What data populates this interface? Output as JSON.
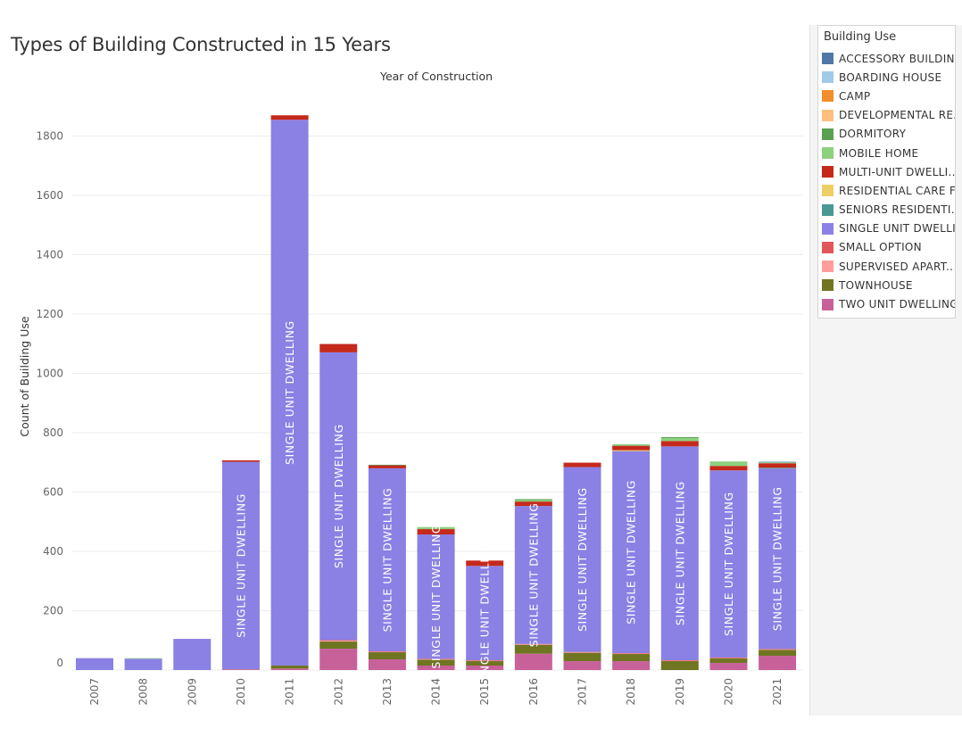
{
  "title": "Types of Building Constructed in 15 Years",
  "legend": {
    "title": "Building Use",
    "items": [
      {
        "label": "ACCESSORY BUILDIN..",
        "color": "#4e79a7"
      },
      {
        "label": "BOARDING HOUSE",
        "color": "#a0cbe8"
      },
      {
        "label": "CAMP",
        "color": "#f28e2b"
      },
      {
        "label": "DEVELOPMENTAL RE..",
        "color": "#ffbe7d"
      },
      {
        "label": "DORMITORY",
        "color": "#59a14f"
      },
      {
        "label": "MOBILE HOME",
        "color": "#8cd17d"
      },
      {
        "label": "MULTI-UNIT DWELLI..",
        "color": "#c5291c"
      },
      {
        "label": "RESIDENTIAL CARE F..",
        "color": "#f1ce63"
      },
      {
        "label": "SENIORS RESIDENTI..",
        "color": "#499894"
      },
      {
        "label": "SINGLE UNIT DWELLI..",
        "color": "#8b80e4"
      },
      {
        "label": "SMALL OPTION",
        "color": "#e15759"
      },
      {
        "label": "SUPERVISED APART..",
        "color": "#ff9d9a"
      },
      {
        "label": "TOWNHOUSE",
        "color": "#6f7521"
      },
      {
        "label": "TWO UNIT DWELLING",
        "color": "#c8619a"
      }
    ]
  },
  "chart_data": {
    "type": "bar",
    "stacked": true,
    "title": "Types of Building Constructed in 15 Years",
    "xlabel": "Year of Construction",
    "ylabel": "Count of Building Use",
    "ylim": [
      -25,
      1880
    ],
    "yticks": [
      0,
      200,
      400,
      600,
      800,
      1000,
      1200,
      1400,
      1600,
      1800
    ],
    "grid": true,
    "legend_position": "right",
    "categories": [
      "2007",
      "2008",
      "2009",
      "2010",
      "2011",
      "2012",
      "2013",
      "2014",
      "2015",
      "2016",
      "2017",
      "2018",
      "2019",
      "2020",
      "2021"
    ],
    "series": [
      {
        "name": "TWO UNIT DWELLING",
        "color": "#c8619a",
        "values": [
          0,
          0,
          0,
          0,
          5,
          72,
          36,
          15,
          15,
          55,
          30,
          30,
          0,
          24,
          48
        ]
      },
      {
        "name": "TOWNHOUSE",
        "color": "#6f7521",
        "values": [
          0,
          0,
          0,
          0,
          10,
          24,
          24,
          20,
          15,
          30,
          28,
          24,
          30,
          15,
          20
        ]
      },
      {
        "name": "SUPERVISED APART..",
        "color": "#ff9d9a",
        "values": [
          0,
          0,
          0,
          0,
          0,
          3,
          2,
          2,
          2,
          2,
          2,
          2,
          2,
          2,
          2
        ]
      },
      {
        "name": "SMALL OPTION",
        "color": "#e15759",
        "values": [
          0,
          0,
          0,
          2,
          0,
          2,
          1,
          1,
          1,
          1,
          1,
          1,
          1,
          1,
          1
        ]
      },
      {
        "name": "SINGLE UNIT DWELLI..",
        "color": "#8b80e4",
        "values": [
          40,
          38,
          105,
          700,
          1840,
          970,
          617,
          419,
          318,
          465,
          623,
          681,
          721,
          631,
          608
        ]
      },
      {
        "name": "SENIORS RESIDENTI..",
        "color": "#499894",
        "values": [
          0,
          0,
          0,
          0,
          0,
          0,
          0,
          0,
          0,
          0,
          0,
          0,
          0,
          0,
          3
        ]
      },
      {
        "name": "RESIDENTIAL CARE F..",
        "color": "#f1ce63",
        "values": [
          0,
          0,
          0,
          0,
          0,
          0,
          0,
          0,
          0,
          0,
          0,
          3,
          0,
          0,
          0
        ]
      },
      {
        "name": "MULTI-UNIT DWELLI..",
        "color": "#c5291c",
        "values": [
          0,
          0,
          0,
          5,
          15,
          28,
          10,
          18,
          18,
          15,
          15,
          15,
          18,
          15,
          15
        ]
      },
      {
        "name": "MOBILE HOME",
        "color": "#8cd17d",
        "values": [
          0,
          2,
          0,
          0,
          0,
          0,
          0,
          7,
          0,
          5,
          0,
          5,
          10,
          15,
          3
        ]
      },
      {
        "name": "DORMITORY",
        "color": "#59a14f",
        "values": [
          0,
          0,
          0,
          0,
          0,
          0,
          2,
          0,
          0,
          3,
          0,
          0,
          3,
          0,
          0
        ]
      },
      {
        "name": "ACCESSORY BUILDIN..",
        "color": "#4e79a7",
        "values": [
          0,
          0,
          0,
          0,
          0,
          0,
          0,
          0,
          0,
          0,
          0,
          0,
          0,
          0,
          2
        ]
      }
    ],
    "annotations": {
      "label": "SINGLE UNIT DWELLING",
      "years": [
        "2010",
        "2011",
        "2012",
        "2013",
        "2014",
        "2015",
        "2016",
        "2017",
        "2018",
        "2019",
        "2020",
        "2021"
      ]
    }
  }
}
